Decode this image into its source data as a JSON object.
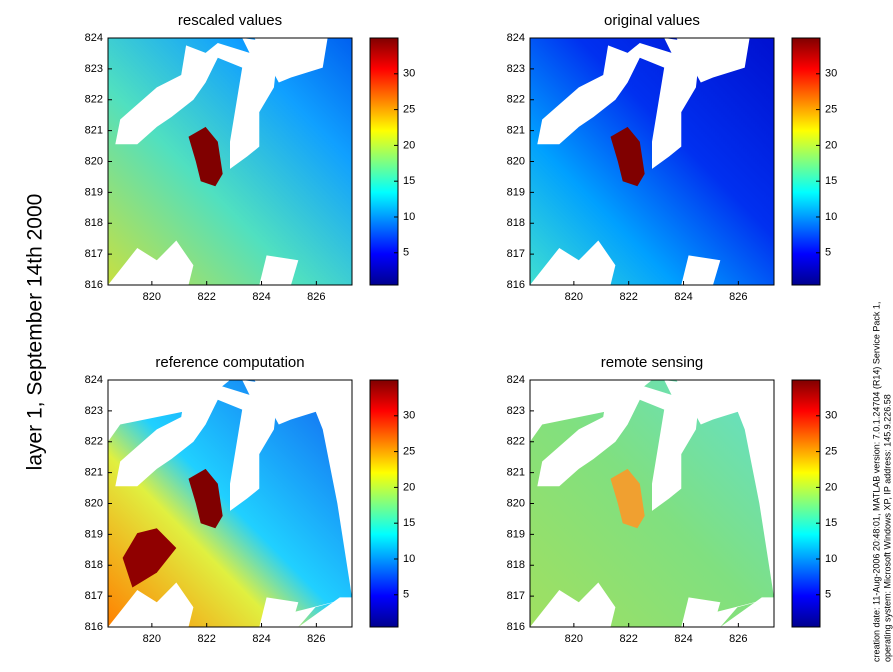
{
  "side_title": "layer 1, September 14th 2000",
  "footer": [
    "creation date: 11-Aug-2006 20:48:01, MATLAB version: 7.0.1.24704 (R14) Service Pack 1,",
    "operating system: Microsoft Windows XP, IP address:  145.9.226.58"
  ],
  "chart_data": [
    {
      "type": "map",
      "title": "rescaled values",
      "xlim": [
        818.4,
        827.3
      ],
      "ylim": [
        816,
        824
      ],
      "xticks": [
        820,
        822,
        824,
        826
      ],
      "yticks": [
        816,
        817,
        818,
        819,
        820,
        821,
        822,
        823,
        824
      ],
      "clim": [
        0.5,
        35
      ],
      "cticks": [
        5,
        10,
        15,
        20,
        25,
        30
      ]
    },
    {
      "type": "map",
      "title": "original values",
      "xlim": [
        818.4,
        827.3
      ],
      "ylim": [
        816,
        824
      ],
      "xticks": [
        820,
        822,
        824,
        826
      ],
      "yticks": [
        816,
        817,
        818,
        819,
        820,
        821,
        822,
        823,
        824
      ],
      "clim": [
        0.5,
        35
      ],
      "cticks": [
        5,
        10,
        15,
        20,
        25,
        30
      ]
    },
    {
      "type": "map",
      "title": "reference computation",
      "xlim": [
        818.4,
        827.3
      ],
      "ylim": [
        816,
        824
      ],
      "xticks": [
        820,
        822,
        824,
        826
      ],
      "yticks": [
        816,
        817,
        818,
        819,
        820,
        821,
        822,
        823,
        824
      ],
      "clim": [
        0.5,
        35
      ],
      "cticks": [
        5,
        10,
        15,
        20,
        25,
        30
      ]
    },
    {
      "type": "map",
      "title": "remote sensing",
      "xlim": [
        818.4,
        827.3
      ],
      "ylim": [
        816,
        824
      ],
      "xticks": [
        820,
        822,
        824,
        826
      ],
      "yticks": [
        816,
        817,
        818,
        819,
        820,
        821,
        822,
        823,
        824
      ],
      "clim": [
        0.5,
        35
      ],
      "cticks": [
        5,
        10,
        15,
        20,
        25,
        30
      ]
    }
  ]
}
